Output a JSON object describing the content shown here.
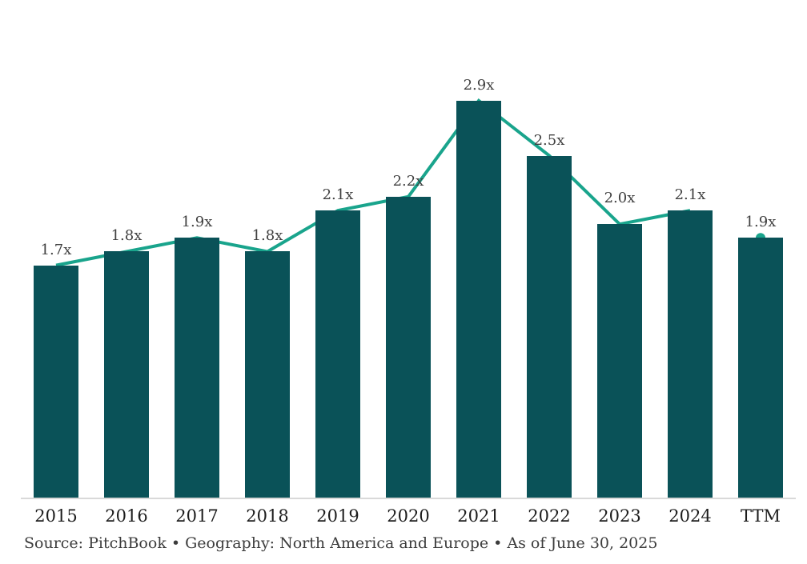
{
  "chart_data": {
    "type": "bar",
    "title": "",
    "xlabel": "",
    "ylabel": "",
    "categories": [
      "2015",
      "2016",
      "2017",
      "2018",
      "2019",
      "2020",
      "2021",
      "2022",
      "2023",
      "2024",
      "TTM"
    ],
    "values": [
      1.7,
      1.8,
      1.9,
      1.8,
      2.1,
      2.2,
      2.9,
      2.5,
      2.0,
      2.1,
      1.9
    ],
    "value_labels": [
      "1.7x",
      "1.8x",
      "1.9x",
      "1.8x",
      "2.1x",
      "2.2x",
      "2.9x",
      "2.5x",
      "2.0x",
      "2.1x",
      "1.9x"
    ],
    "series": [
      {
        "name": "multiple-bars",
        "type": "bar",
        "values": [
          1.7,
          1.8,
          1.9,
          1.8,
          2.1,
          2.2,
          2.9,
          2.5,
          2.0,
          2.1,
          1.9
        ]
      },
      {
        "name": "trend-line",
        "type": "line",
        "categories": [
          "2015",
          "2016",
          "2017",
          "2018",
          "2019",
          "2020",
          "2021",
          "2022",
          "2023",
          "2024"
        ],
        "values": [
          1.7,
          1.8,
          1.9,
          1.8,
          2.1,
          2.2,
          2.9,
          2.5,
          2.0,
          2.1
        ]
      },
      {
        "name": "ttm-marker",
        "type": "point",
        "category": "TTM",
        "value": 1.9
      }
    ],
    "ylim": [
      0,
      3.5
    ],
    "grid": false,
    "legend": "none",
    "axis_line_visible": true,
    "colors": {
      "bar": "#0a5258",
      "line": "#19a48c",
      "marker": "#19a48c",
      "axis_line": "#d9d9d9",
      "value_label": "#404040",
      "axis_label": "#1d1d1d",
      "footer_text": "#3c3c3c"
    }
  },
  "footer": {
    "text": "Source: PitchBook • Geography: North America and Europe • As of June 30, 2025"
  }
}
